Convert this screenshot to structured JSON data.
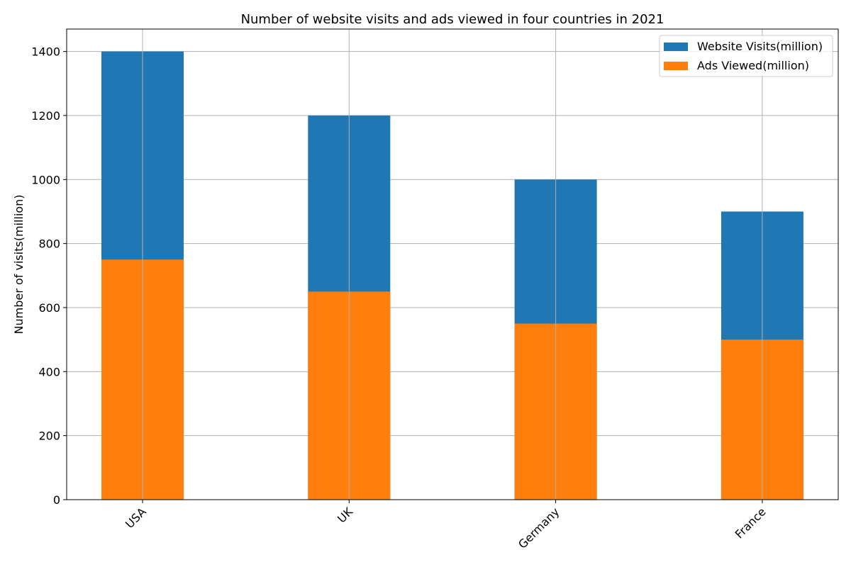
{
  "chart_data": {
    "type": "bar",
    "stacked": false,
    "title": "Number of website visits and ads viewed in four countries in 2021",
    "xlabel": "",
    "ylabel": "Number of visits(million)",
    "categories": [
      "USA",
      "UK",
      "Germany",
      "France"
    ],
    "series": [
      {
        "name": "Website Visits(million)",
        "color": "#1f77b4",
        "values": [
          1400,
          1200,
          1000,
          900
        ]
      },
      {
        "name": "Ads Viewed(million)",
        "color": "#ff7f0e",
        "values": [
          750,
          650,
          550,
          500
        ]
      }
    ],
    "ylim": [
      0,
      1470
    ],
    "yticks": [
      0,
      200,
      400,
      600,
      800,
      1000,
      1200,
      1400
    ],
    "grid": true,
    "legend_position": "top-right",
    "xtick_rotation": 45
  }
}
